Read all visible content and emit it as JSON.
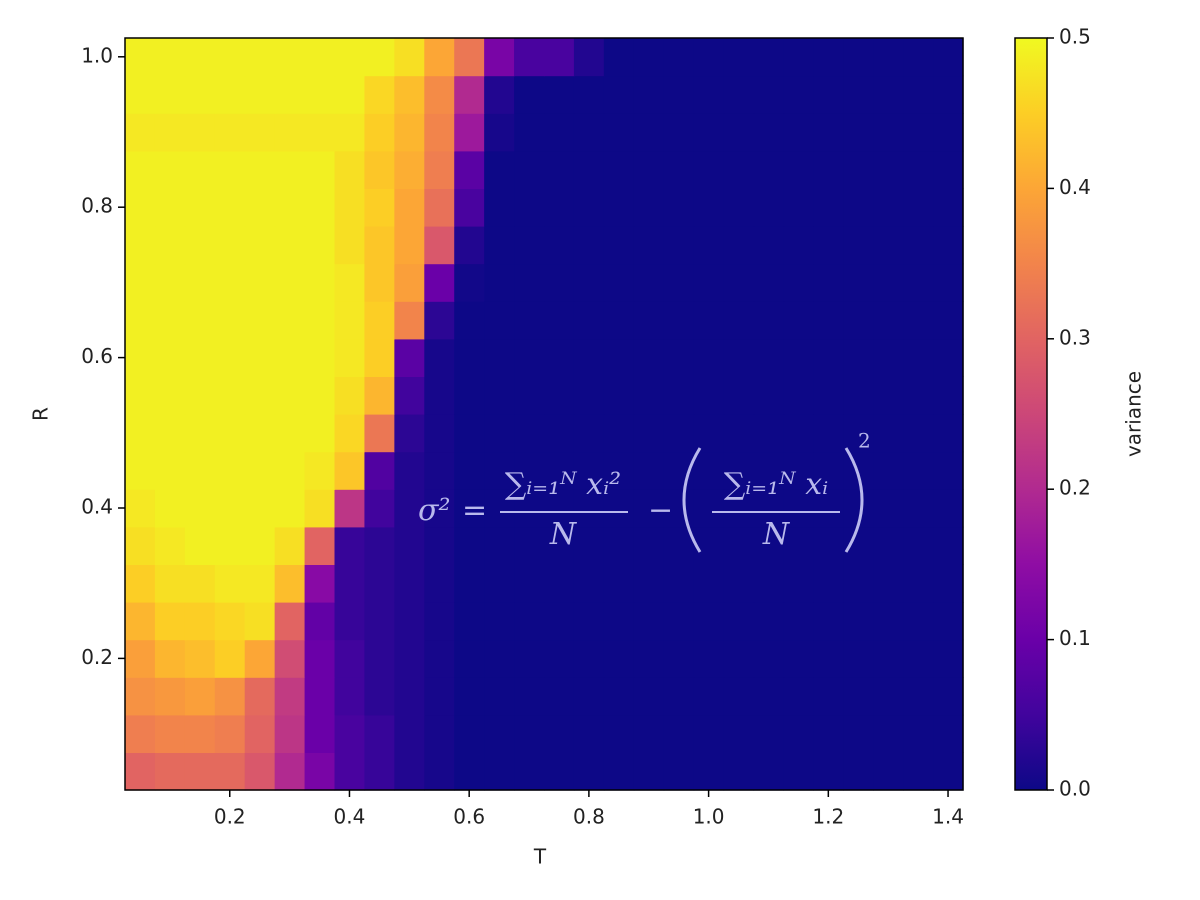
{
  "chart_data": {
    "type": "heatmap",
    "x_label": "T",
    "y_label": "R",
    "colorbar_label": "variance",
    "colormap": "plasma",
    "clim": [
      0,
      0.5
    ],
    "cticks": [
      {
        "value": 0,
        "label": "0.0"
      },
      0.1,
      0.2,
      0.3,
      0.4,
      0.5
    ],
    "xlim": [
      0.025,
      1.425
    ],
    "ylim": [
      0.025,
      1.025
    ],
    "xticks": [
      0.2,
      0.4,
      0.6,
      0.8,
      {
        "value": 1,
        "label": "1.0"
      },
      1.2,
      1.4
    ],
    "yticks": [
      0.2,
      0.4,
      0.6,
      0.8,
      {
        "value": 1,
        "label": "1.0"
      }
    ],
    "x": [
      0.05,
      0.1,
      0.15,
      0.2,
      0.25,
      0.3,
      0.35,
      0.4,
      0.45,
      0.5,
      0.55,
      0.6,
      0.65,
      0.7,
      0.75,
      0.8,
      0.85,
      0.9,
      0.95,
      1.0,
      1.05,
      1.1,
      1.15,
      1.2,
      1.25,
      1.3,
      1.35,
      1.4
    ],
    "y": [
      0.05,
      0.1,
      0.15,
      0.2,
      0.25,
      0.3,
      0.35,
      0.4,
      0.45,
      0.5,
      0.55,
      0.6,
      0.65,
      0.7,
      0.75,
      0.8,
      0.85,
      0.9,
      0.95,
      1.0
    ],
    "z": [
      [
        0.3,
        0.31,
        0.31,
        0.31,
        0.28,
        0.2,
        0.12,
        0.06,
        0.04,
        0.02,
        0.01,
        0,
        0,
        0,
        0,
        0,
        0,
        0,
        0,
        0,
        0,
        0,
        0,
        0,
        0,
        0,
        0,
        0
      ],
      [
        0.34,
        0.35,
        0.35,
        0.34,
        0.3,
        0.22,
        0.1,
        0.06,
        0.04,
        0.02,
        0.01,
        0,
        0,
        0,
        0,
        0,
        0,
        0,
        0,
        0,
        0,
        0,
        0,
        0,
        0,
        0,
        0,
        0
      ],
      [
        0.37,
        0.38,
        0.39,
        0.37,
        0.31,
        0.23,
        0.1,
        0.05,
        0.03,
        0.02,
        0.01,
        0,
        0,
        0,
        0,
        0,
        0,
        0,
        0,
        0,
        0,
        0,
        0,
        0,
        0,
        0,
        0,
        0
      ],
      [
        0.39,
        0.42,
        0.43,
        0.45,
        0.4,
        0.26,
        0.1,
        0.05,
        0.03,
        0.02,
        0.01,
        0,
        0,
        0,
        0,
        0,
        0,
        0,
        0,
        0,
        0,
        0,
        0,
        0,
        0,
        0,
        0,
        0
      ],
      [
        0.42,
        0.45,
        0.45,
        0.46,
        0.47,
        0.3,
        0.09,
        0.04,
        0.03,
        0.02,
        0.01,
        0,
        0,
        0,
        0,
        0,
        0,
        0,
        0,
        0,
        0,
        0,
        0,
        0,
        0,
        0,
        0,
        0
      ],
      [
        0.45,
        0.47,
        0.47,
        0.48,
        0.48,
        0.43,
        0.14,
        0.04,
        0.03,
        0.02,
        0.01,
        0,
        0,
        0,
        0,
        0,
        0,
        0,
        0,
        0,
        0,
        0,
        0,
        0,
        0,
        0,
        0,
        0
      ],
      [
        0.47,
        0.48,
        0.49,
        0.49,
        0.49,
        0.47,
        0.3,
        0.04,
        0.03,
        0.02,
        0.01,
        0,
        0,
        0,
        0,
        0,
        0,
        0,
        0,
        0,
        0,
        0,
        0,
        0,
        0,
        0,
        0,
        0
      ],
      [
        0.48,
        0.49,
        0.49,
        0.49,
        0.49,
        0.49,
        0.47,
        0.22,
        0.05,
        0.02,
        0.01,
        0,
        0,
        0,
        0,
        0,
        0,
        0,
        0,
        0,
        0,
        0,
        0,
        0,
        0,
        0,
        0,
        0
      ],
      [
        0.49,
        0.49,
        0.49,
        0.49,
        0.49,
        0.49,
        0.48,
        0.44,
        0.07,
        0.02,
        0.01,
        0,
        0,
        0,
        0,
        0,
        0,
        0,
        0,
        0,
        0,
        0,
        0,
        0,
        0,
        0,
        0,
        0
      ],
      [
        0.49,
        0.49,
        0.49,
        0.49,
        0.49,
        0.49,
        0.49,
        0.46,
        0.33,
        0.03,
        0.01,
        0,
        0,
        0,
        0,
        0,
        0,
        0,
        0,
        0,
        0,
        0,
        0,
        0,
        0,
        0,
        0,
        0
      ],
      [
        0.49,
        0.49,
        0.49,
        0.49,
        0.49,
        0.49,
        0.49,
        0.47,
        0.42,
        0.05,
        0.01,
        0,
        0,
        0,
        0,
        0,
        0,
        0,
        0,
        0,
        0,
        0,
        0,
        0,
        0,
        0,
        0,
        0
      ],
      [
        0.49,
        0.49,
        0.49,
        0.49,
        0.49,
        0.49,
        0.49,
        0.48,
        0.45,
        0.08,
        0.01,
        0,
        0,
        0,
        0,
        0,
        0,
        0,
        0,
        0,
        0,
        0,
        0,
        0,
        0,
        0,
        0,
        0
      ],
      [
        0.49,
        0.49,
        0.49,
        0.49,
        0.49,
        0.49,
        0.49,
        0.48,
        0.45,
        0.35,
        0.03,
        0,
        0,
        0,
        0,
        0,
        0,
        0,
        0,
        0,
        0,
        0,
        0,
        0,
        0,
        0,
        0,
        0
      ],
      [
        0.49,
        0.49,
        0.49,
        0.49,
        0.49,
        0.49,
        0.49,
        0.48,
        0.44,
        0.39,
        0.1,
        0.005,
        0,
        0,
        0,
        0,
        0,
        0,
        0,
        0,
        0,
        0,
        0,
        0,
        0,
        0,
        0,
        0
      ],
      [
        0.49,
        0.49,
        0.49,
        0.49,
        0.49,
        0.49,
        0.49,
        0.47,
        0.44,
        0.4,
        0.28,
        0.02,
        0,
        0,
        0,
        0,
        0,
        0,
        0,
        0,
        0,
        0,
        0,
        0,
        0,
        0,
        0,
        0
      ],
      [
        0.49,
        0.49,
        0.49,
        0.49,
        0.49,
        0.49,
        0.49,
        0.47,
        0.45,
        0.4,
        0.32,
        0.06,
        0,
        0,
        0,
        0,
        0,
        0,
        0,
        0,
        0,
        0,
        0,
        0,
        0,
        0,
        0,
        0
      ],
      [
        0.49,
        0.49,
        0.49,
        0.49,
        0.49,
        0.49,
        0.49,
        0.47,
        0.44,
        0.41,
        0.34,
        0.08,
        0,
        0,
        0,
        0,
        0,
        0,
        0,
        0,
        0,
        0,
        0,
        0,
        0,
        0,
        0,
        0
      ],
      [
        0.48,
        0.48,
        0.48,
        0.48,
        0.48,
        0.48,
        0.48,
        0.48,
        0.45,
        0.42,
        0.35,
        0.17,
        0.01,
        0,
        0,
        0,
        0,
        0,
        0,
        0,
        0,
        0,
        0,
        0,
        0,
        0,
        0,
        0
      ],
      [
        0.49,
        0.49,
        0.49,
        0.49,
        0.49,
        0.49,
        0.49,
        0.49,
        0.46,
        0.43,
        0.36,
        0.2,
        0.02,
        0,
        0,
        0,
        0,
        0,
        0,
        0,
        0,
        0,
        0,
        0,
        0,
        0,
        0,
        0
      ],
      [
        0.49,
        0.49,
        0.49,
        0.49,
        0.49,
        0.49,
        0.49,
        0.49,
        0.49,
        0.47,
        0.4,
        0.33,
        0.12,
        0.06,
        0.06,
        0.02,
        0,
        0,
        0,
        0,
        0,
        0,
        0,
        0,
        0,
        0,
        0,
        0
      ]
    ],
    "annotation": {
      "lhs": "σ²",
      "eq": "=",
      "num1": "∑ᵢ₌₁ᴺ xᵢ²",
      "den1": "N",
      "minus": "−",
      "num2": "∑ᵢ₌₁ᴺ xᵢ",
      "den2": "N",
      "power": "2"
    }
  }
}
